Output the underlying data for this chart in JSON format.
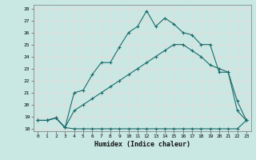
{
  "xlabel": "Humidex (Indice chaleur)",
  "xlim": [
    -0.5,
    23.5
  ],
  "ylim": [
    17.8,
    28.3
  ],
  "yticks": [
    18,
    19,
    20,
    21,
    22,
    23,
    24,
    25,
    26,
    27,
    28
  ],
  "xticks": [
    0,
    1,
    2,
    3,
    4,
    5,
    6,
    7,
    8,
    9,
    10,
    11,
    12,
    13,
    14,
    15,
    16,
    17,
    18,
    19,
    20,
    21,
    22,
    23
  ],
  "bg_color": "#c9e8e4",
  "grid_color": "#e8d8d8",
  "line_color": "#1a6b6b",
  "line1_x": [
    0,
    1,
    2,
    3,
    4,
    5,
    6,
    7,
    8,
    9,
    10,
    11,
    12,
    13,
    14,
    15,
    16,
    17,
    18,
    19,
    20,
    21,
    22,
    23
  ],
  "line1_y": [
    18.7,
    18.7,
    18.9,
    18.1,
    18.0,
    18.0,
    18.0,
    18.0,
    18.0,
    18.0,
    18.0,
    18.0,
    18.0,
    18.0,
    18.0,
    18.0,
    18.0,
    18.0,
    18.0,
    18.0,
    18.0,
    18.0,
    18.0,
    18.7
  ],
  "line2_x": [
    0,
    1,
    2,
    3,
    4,
    5,
    6,
    7,
    8,
    9,
    10,
    11,
    12,
    13,
    14,
    15,
    16,
    17,
    18,
    19,
    20,
    21,
    22,
    23
  ],
  "line2_y": [
    18.7,
    18.7,
    18.9,
    18.1,
    19.5,
    20.0,
    20.5,
    21.0,
    21.5,
    22.0,
    22.5,
    23.0,
    23.5,
    24.0,
    24.5,
    25.0,
    25.0,
    24.5,
    24.0,
    23.3,
    23.0,
    22.7,
    19.5,
    18.7
  ],
  "line3_x": [
    0,
    1,
    2,
    3,
    4,
    5,
    6,
    7,
    8,
    9,
    10,
    11,
    12,
    13,
    14,
    15,
    16,
    17,
    18,
    19,
    20,
    21,
    22,
    23
  ],
  "line3_y": [
    18.7,
    18.7,
    18.9,
    18.1,
    21.0,
    21.2,
    22.5,
    23.5,
    23.5,
    24.8,
    26.0,
    26.5,
    27.8,
    26.5,
    27.2,
    26.7,
    26.0,
    25.8,
    25.0,
    25.0,
    22.7,
    22.7,
    20.3,
    18.7
  ]
}
